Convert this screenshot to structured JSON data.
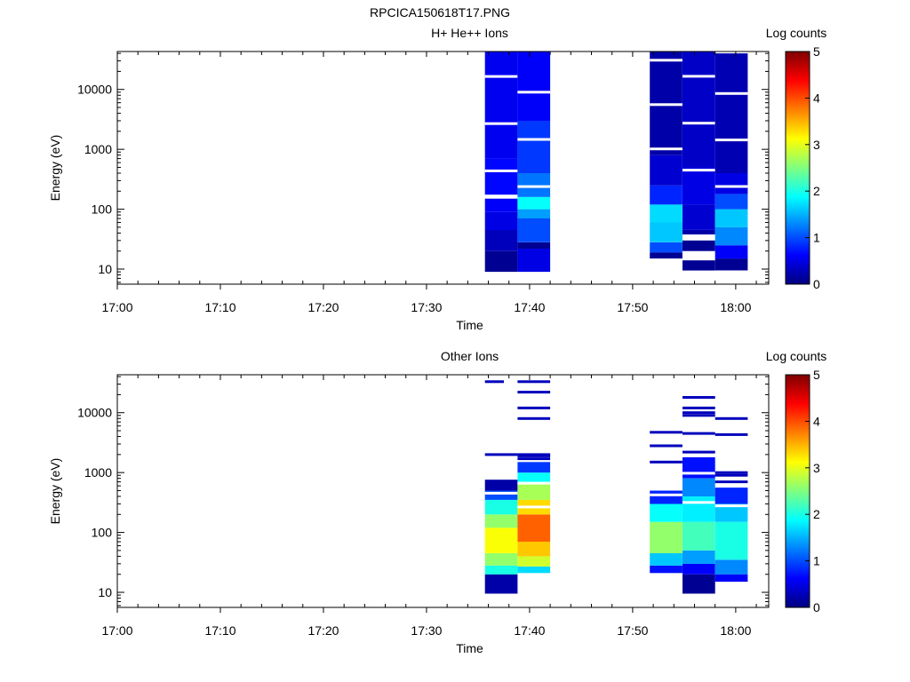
{
  "figure_title": "RPCICA150618T17.PNG",
  "colormap": [
    "#00007f",
    "#0000ff",
    "#007fff",
    "#00ffff",
    "#7fff7f",
    "#ffff00",
    "#ff7f00",
    "#ff0000",
    "#7f0000"
  ],
  "chart_data": [
    {
      "type": "heatmap",
      "title": "H+ He++ Ions",
      "xlabel": "Time",
      "ylabel": "Energy (eV)",
      "x_ticks": [
        "17:00",
        "17:10",
        "17:20",
        "17:30",
        "17:40",
        "17:50",
        "18:00"
      ],
      "x_tick_minutes": [
        0,
        10,
        20,
        30,
        40,
        50,
        60
      ],
      "x_range_minutes": [
        0,
        63.2
      ],
      "y_scale": "log",
      "y_range": [
        5.6,
        43000
      ],
      "y_ticks": [
        10,
        100,
        1000,
        10000
      ],
      "y_tick_labels": [
        "10",
        "100",
        "1000",
        "10000"
      ],
      "colorbar": {
        "label": "Log counts",
        "range": [
          0,
          5
        ],
        "ticks": [
          "0",
          "1",
          "2",
          "3",
          "4",
          "5"
        ]
      },
      "columns": [
        {
          "start": "17:35:40",
          "end": "17:38:50",
          "emin": 9,
          "emax": 43000,
          "bands": [
            {
              "lo": 9,
              "hi": 20,
              "v": 0.1
            },
            {
              "lo": 20,
              "hi": 45,
              "v": 0.3
            },
            {
              "lo": 45,
              "hi": 90,
              "v": 0.5
            },
            {
              "lo": 90,
              "hi": 150,
              "v": 0.6
            },
            {
              "lo": 150,
              "hi": 175,
              "gap": true
            },
            {
              "lo": 175,
              "hi": 700,
              "v": 0.65
            },
            {
              "lo": 700,
              "hi": 43000,
              "v": 0.55
            }
          ]
        },
        {
          "start": "17:38:50",
          "end": "17:42:00",
          "emin": 9,
          "emax": 43000,
          "bands": [
            {
              "lo": 9,
              "hi": 22,
              "v": 0.5
            },
            {
              "lo": 22,
              "hi": 28,
              "v": 0.1
            },
            {
              "lo": 28,
              "hi": 70,
              "v": 1.0
            },
            {
              "lo": 70,
              "hi": 100,
              "v": 1.4
            },
            {
              "lo": 100,
              "hi": 160,
              "v": 1.9
            },
            {
              "lo": 160,
              "hi": 400,
              "v": 1.2
            },
            {
              "lo": 400,
              "hi": 3000,
              "v": 0.9
            },
            {
              "lo": 3000,
              "hi": 43000,
              "v": 0.6
            }
          ]
        },
        {
          "start": "17:51:40",
          "end": "17:54:50",
          "emin": 15,
          "emax": 43000,
          "bands": [
            {
              "lo": 15,
              "hi": 19,
              "v": 0.1
            },
            {
              "lo": 19,
              "hi": 28,
              "v": 1.0
            },
            {
              "lo": 28,
              "hi": 60,
              "v": 1.6
            },
            {
              "lo": 60,
              "hi": 120,
              "v": 1.7
            },
            {
              "lo": 120,
              "hi": 250,
              "v": 0.8
            },
            {
              "lo": 250,
              "hi": 800,
              "v": 0.4
            },
            {
              "lo": 800,
              "hi": 43000,
              "v": 0.2
            }
          ]
        },
        {
          "start": "17:54:50",
          "end": "17:58:00",
          "emin": 9.5,
          "emax": 43000,
          "bands": [
            {
              "lo": 9.5,
              "hi": 14,
              "v": 0.1
            },
            {
              "lo": 14,
              "hi": 20,
              "gap": true
            },
            {
              "lo": 20,
              "hi": 30,
              "v": 0.1
            },
            {
              "lo": 30,
              "hi": 38,
              "gap": true
            },
            {
              "lo": 38,
              "hi": 45,
              "v": 0.2
            },
            {
              "lo": 45,
              "hi": 120,
              "v": 0.4
            },
            {
              "lo": 120,
              "hi": 500,
              "v": 0.5
            },
            {
              "lo": 500,
              "hi": 43000,
              "v": 0.35
            }
          ]
        },
        {
          "start": "17:58:00",
          "end": "18:01:10",
          "emin": 9.5,
          "emax": 40000,
          "bands": [
            {
              "lo": 9.5,
              "hi": 15,
              "v": 0.1
            },
            {
              "lo": 15,
              "hi": 25,
              "v": 0.6
            },
            {
              "lo": 25,
              "hi": 50,
              "v": 1.3
            },
            {
              "lo": 50,
              "hi": 100,
              "v": 1.6
            },
            {
              "lo": 100,
              "hi": 180,
              "v": 1.0
            },
            {
              "lo": 180,
              "hi": 400,
              "v": 0.5
            },
            {
              "lo": 400,
              "hi": 40000,
              "v": 0.25
            }
          ]
        }
      ]
    },
    {
      "type": "heatmap",
      "title": "Other Ions",
      "xlabel": "Time",
      "ylabel": "Energy (eV)",
      "x_ticks": [
        "17:00",
        "17:10",
        "17:20",
        "17:30",
        "17:40",
        "17:50",
        "18:00"
      ],
      "x_tick_minutes": [
        0,
        10,
        20,
        30,
        40,
        50,
        60
      ],
      "x_range_minutes": [
        0,
        63.2
      ],
      "y_scale": "log",
      "y_range": [
        5.6,
        43000
      ],
      "y_ticks": [
        10,
        100,
        1000,
        10000
      ],
      "y_tick_labels": [
        "10",
        "100",
        "1000",
        "10000"
      ],
      "colorbar": {
        "label": "Log counts",
        "range": [
          0,
          5
        ],
        "ticks": [
          "0",
          "1",
          "2",
          "3",
          "4",
          "5"
        ]
      },
      "columns": [
        {
          "start": "17:35:40",
          "end": "17:38:50",
          "emin": 9.5,
          "emax": 760,
          "bands": [
            {
              "lo": 9.5,
              "hi": 20,
              "v": 0.2
            },
            {
              "lo": 20,
              "hi": 28,
              "v": 2.0
            },
            {
              "lo": 28,
              "hi": 45,
              "v": 2.6
            },
            {
              "lo": 45,
              "hi": 120,
              "v": 3.1
            },
            {
              "lo": 120,
              "hi": 200,
              "v": 2.6
            },
            {
              "lo": 200,
              "hi": 350,
              "v": 2.0
            },
            {
              "lo": 350,
              "hi": 500,
              "v": 1.0
            },
            {
              "lo": 500,
              "hi": 760,
              "v": 0.2
            }
          ]
        },
        {
          "start": "17:38:50",
          "end": "17:42:00",
          "emin": 21,
          "emax": 1500,
          "bands": [
            {
              "lo": 21,
              "hi": 27,
              "v": 1.7
            },
            {
              "lo": 27,
              "hi": 40,
              "v": 2.9
            },
            {
              "lo": 40,
              "hi": 70,
              "v": 3.4
            },
            {
              "lo": 70,
              "hi": 200,
              "v": 3.9
            },
            {
              "lo": 200,
              "hi": 350,
              "v": 3.3
            },
            {
              "lo": 350,
              "hi": 700,
              "v": 2.7
            },
            {
              "lo": 700,
              "hi": 1000,
              "v": 1.9
            },
            {
              "lo": 1000,
              "hi": 1500,
              "v": 0.9
            }
          ]
        },
        {
          "start": "17:51:40",
          "end": "17:54:50",
          "emin": 21,
          "emax": 500,
          "bands": [
            {
              "lo": 21,
              "hi": 28,
              "v": 0.7
            },
            {
              "lo": 28,
              "hi": 45,
              "v": 1.6
            },
            {
              "lo": 45,
              "hi": 150,
              "v": 2.6
            },
            {
              "lo": 150,
              "hi": 300,
              "v": 1.9
            },
            {
              "lo": 300,
              "hi": 500,
              "v": 0.8
            }
          ]
        },
        {
          "start": "17:54:50",
          "end": "17:58:00",
          "emin": 9.5,
          "emax": 1800,
          "bands": [
            {
              "lo": 9.5,
              "hi": 20,
              "v": 0.1
            },
            {
              "lo": 20,
              "hi": 30,
              "v": 0.6
            },
            {
              "lo": 30,
              "hi": 50,
              "v": 1.4
            },
            {
              "lo": 50,
              "hi": 150,
              "v": 2.2
            },
            {
              "lo": 150,
              "hi": 400,
              "v": 1.8
            },
            {
              "lo": 400,
              "hi": 800,
              "v": 1.3
            },
            {
              "lo": 800,
              "hi": 1800,
              "v": 0.7
            }
          ]
        },
        {
          "start": "17:58:00",
          "end": "18:01:10",
          "emin": 15,
          "emax": 560,
          "bands": [
            {
              "lo": 15,
              "hi": 20,
              "v": 0.6
            },
            {
              "lo": 20,
              "hi": 35,
              "v": 1.3
            },
            {
              "lo": 35,
              "hi": 150,
              "v": 2.0
            },
            {
              "lo": 150,
              "hi": 300,
              "v": 1.6
            },
            {
              "lo": 300,
              "hi": 560,
              "v": 0.8
            }
          ]
        }
      ],
      "lines": [
        {
          "start": "17:35:40",
          "end": "17:38:50",
          "e": [
            2000
          ]
        },
        {
          "start": "17:35:40",
          "end": "17:37:30",
          "e": [
            33000
          ]
        },
        {
          "start": "17:38:50",
          "end": "17:42:00",
          "e": [
            33000,
            22000,
            12000,
            8000,
            2000,
            1900,
            1700
          ]
        },
        {
          "start": "17:51:40",
          "end": "17:54:50",
          "e": [
            4700,
            2800,
            1500
          ]
        },
        {
          "start": "17:54:50",
          "end": "17:58:00",
          "e": [
            18000,
            12000,
            10000,
            9000,
            4500,
            2200
          ]
        },
        {
          "start": "17:58:00",
          "end": "18:01:10",
          "e": [
            8000,
            4300,
            1000,
            900,
            700
          ]
        }
      ]
    }
  ]
}
